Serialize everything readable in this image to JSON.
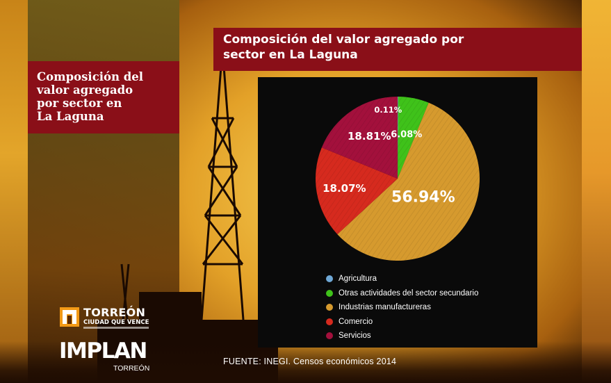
{
  "left_title": "Composición del\nvalor agregado\npor sector en\nLa Laguna",
  "top_title": "Composición del valor agregado por\nsector en La Laguna",
  "source_note": "FUENTE: INEGI. Censos económicos 2014",
  "logos": {
    "torreon_name": "TORREÓN",
    "torreon_tag": "CIUDAD QUE VENCE",
    "implan_name": "IMPLAN",
    "implan_sub": "TORREÓN"
  },
  "chart_data": {
    "type": "pie",
    "title": "Composición del valor agregado por sector en La Laguna",
    "labels": [
      "Agricultura",
      "Otras actividades del sector secundario",
      "Industrias manufactureras",
      "Comercio",
      "Servicios"
    ],
    "values": [
      0.11,
      6.08,
      56.94,
      18.07,
      18.81
    ],
    "value_labels": [
      "0.11%",
      "6.08%",
      "56.94%",
      "18.07%",
      "18.81%"
    ],
    "colors": [
      "#6fa8d6",
      "#3fc21a",
      "#d69a2e",
      "#d62a1e",
      "#a3103c"
    ],
    "legend_position": "bottom-left"
  }
}
